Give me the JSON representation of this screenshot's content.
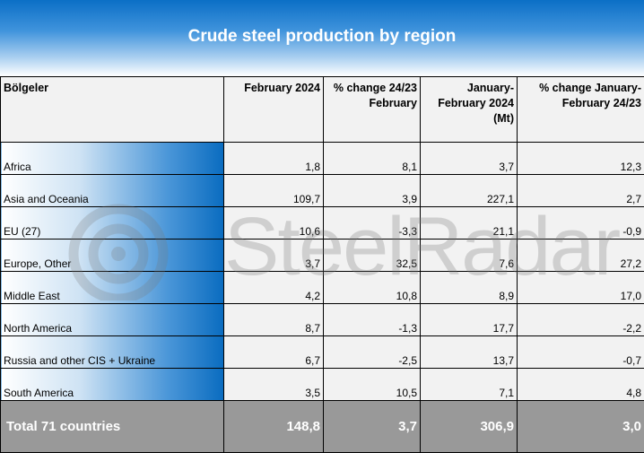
{
  "header": {
    "title": "Crude steel production by region"
  },
  "table": {
    "columns": [
      "Bölgeler",
      "February 2024",
      "% change 24/23 February",
      "January-February 2024 (Mt)",
      "% change January-February 24/23"
    ],
    "rows": [
      [
        "Africa",
        "1,8",
        "8,1",
        "3,7",
        "12,3"
      ],
      [
        "Asia and Oceania",
        "109,7",
        "3,9",
        "227,1",
        "2,7"
      ],
      [
        "EU (27)",
        "10,6",
        "-3,3",
        "21,1",
        "-0,9"
      ],
      [
        "Europe, Other",
        "3,7",
        "32,5",
        "7,6",
        "27,2"
      ],
      [
        "Middle East",
        "4,2",
        "10,8",
        "8,9",
        "17,0"
      ],
      [
        "North America",
        "8,7",
        "-1,3",
        "17,7",
        "-2,2"
      ],
      [
        "Russia and other CIS + Ukraine",
        "6,7",
        "-2,5",
        "13,7",
        "-0,7"
      ],
      [
        "South America",
        "3,5",
        "10,5",
        "7,1",
        "4,8"
      ]
    ],
    "total": [
      "Total 71 countries",
      "148,8",
      "3,7",
      "306,9",
      "3,0"
    ]
  },
  "watermark": "SteelRadar"
}
